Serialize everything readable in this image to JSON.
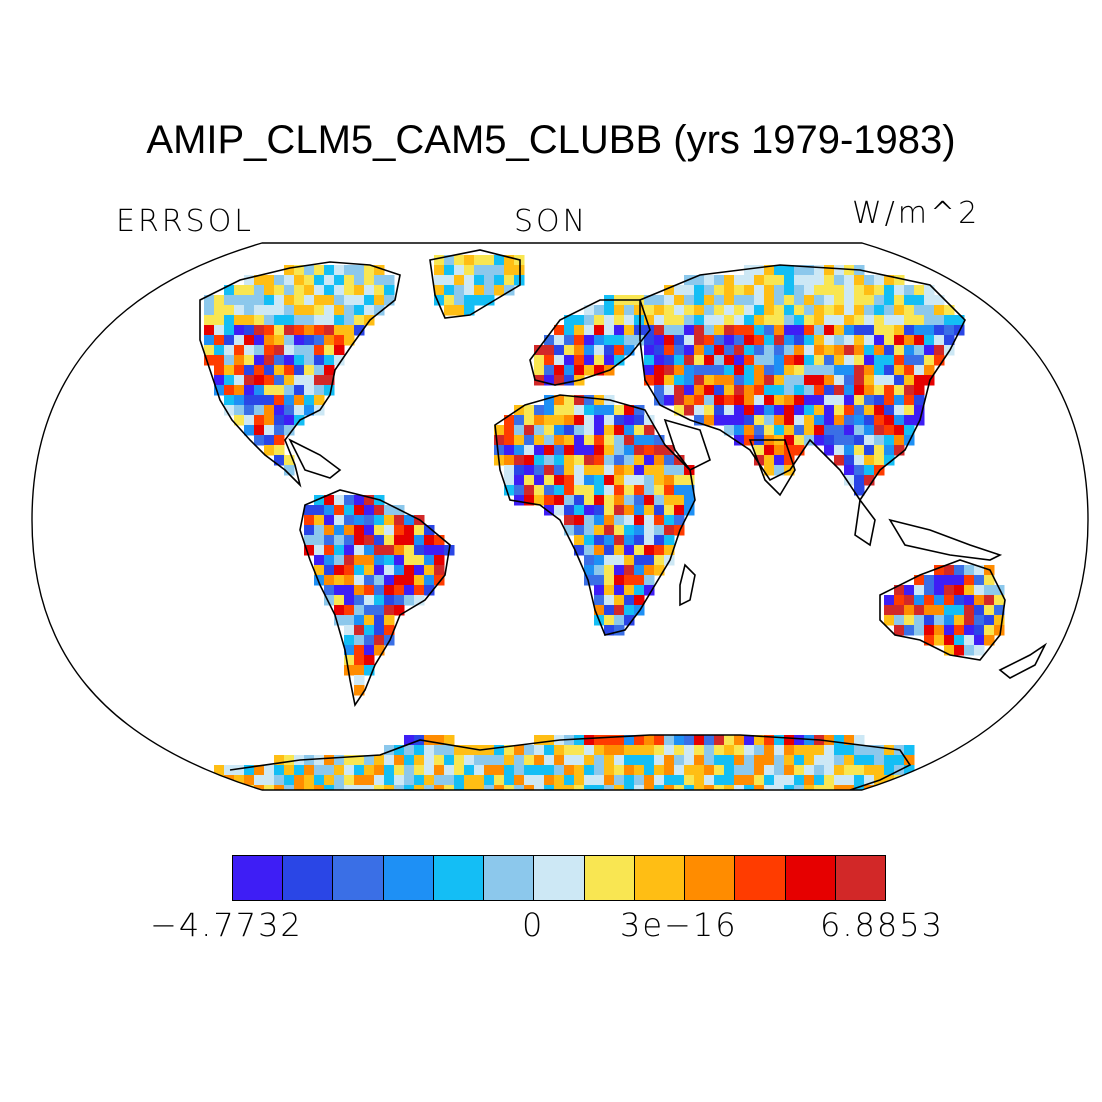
{
  "title": "AMIP_CLM5_CAM5_CLUBB (yrs 1979-1983)",
  "left_label": "ERRSOL",
  "center_label": "SON",
  "right_label": "W/m^2",
  "colorbar": {
    "colors": [
      "#3e1ef5",
      "#2a46e6",
      "#3a6fe6",
      "#1e90f5",
      "#14bef5",
      "#8cc8ec",
      "#cde8f5",
      "#f9e652",
      "#ffbe14",
      "#ff8c00",
      "#ff3c00",
      "#e60000",
      "#d22828"
    ],
    "tick_labels": [
      "−4.7732",
      "0",
      "3e−16",
      "6.8853"
    ]
  },
  "map": {
    "projection": "Robinson",
    "field": "ERRSOL",
    "range": [
      -4.7732,
      6.8853
    ]
  }
}
